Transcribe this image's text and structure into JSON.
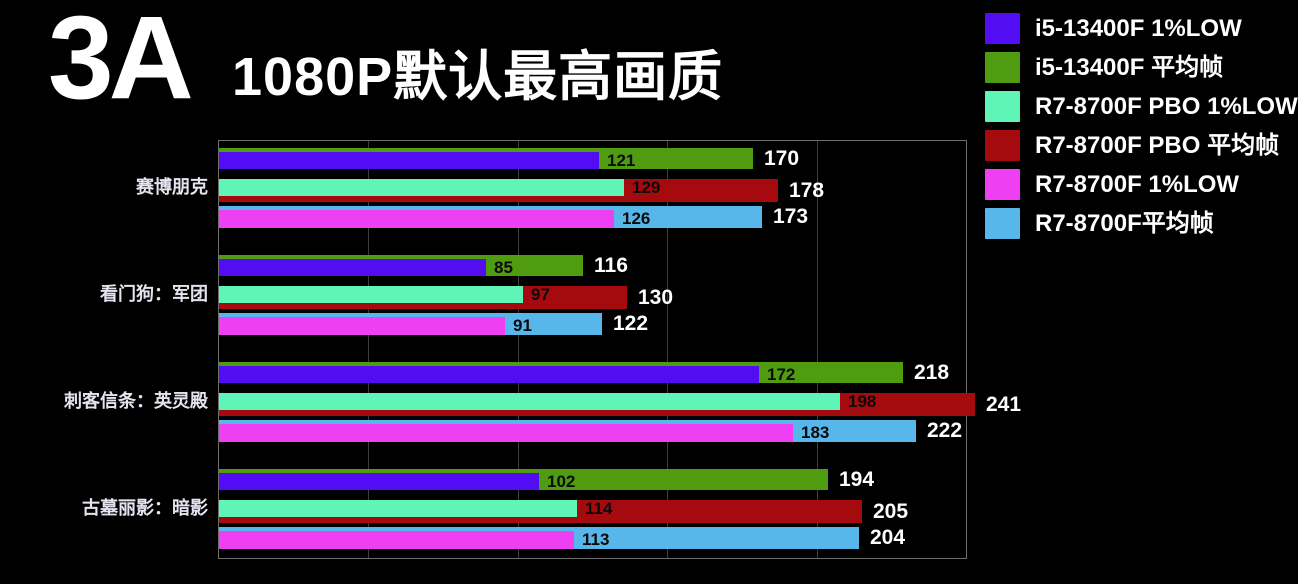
{
  "title": "3A",
  "subtitle": "1080P默认最高画质",
  "background_color": "#000000",
  "legend": [
    {
      "label": "i5-13400F 1%LOW",
      "color": "#530df2"
    },
    {
      "label": "i5-13400F 平均帧",
      "color": "#4f9c10"
    },
    {
      "label": "R7-8700F PBO 1%LOW",
      "color": "#5ef5b7"
    },
    {
      "label": "R7-8700F PBO 平均帧",
      "color": "#a50b0e"
    },
    {
      "label": "R7-8700F 1%LOW",
      "color": "#ee3ff2"
    },
    {
      "label": "R7-8700F平均帧",
      "color": "#57b7ea"
    }
  ],
  "chart_data": {
    "type": "bar",
    "orientation": "horizontal",
    "title": "3A 1080P默认最高画质",
    "categories": [
      "赛博朋克",
      "看门狗：军团",
      "刺客信条：英灵殿",
      "古墓丽影：暗影"
    ],
    "series": [
      {
        "name": "i5-13400F 1%LOW",
        "role": "1%low",
        "color": "#530df2",
        "values": [
          121,
          85,
          172,
          102
        ]
      },
      {
        "name": "i5-13400F 平均帧",
        "role": "avg",
        "color": "#4f9c10",
        "values": [
          170,
          116,
          218,
          194
        ]
      },
      {
        "name": "R7-8700F PBO 1%LOW",
        "role": "1%low",
        "color": "#5ef5b7",
        "values": [
          129,
          97,
          198,
          114
        ]
      },
      {
        "name": "R7-8700F PBO 平均帧",
        "role": "avg",
        "color": "#a50b0e",
        "values": [
          178,
          130,
          241,
          205
        ]
      },
      {
        "name": "R7-8700F 1%LOW",
        "role": "1%low",
        "color": "#ee3ff2",
        "values": [
          126,
          91,
          183,
          113
        ]
      },
      {
        "name": "R7-8700F平均帧",
        "role": "avg",
        "color": "#57b7ea",
        "values": [
          173,
          122,
          222,
          204
        ]
      }
    ],
    "xlim": [
      0,
      238
    ],
    "grid": true,
    "gridline_color": "#3e3e3e",
    "frame_color": "#6e6e6e",
    "value_labels": {
      "low_text_color": "#0a0a0a",
      "avg_text_color": "#ffffff"
    },
    "legend_position": "top-right"
  }
}
